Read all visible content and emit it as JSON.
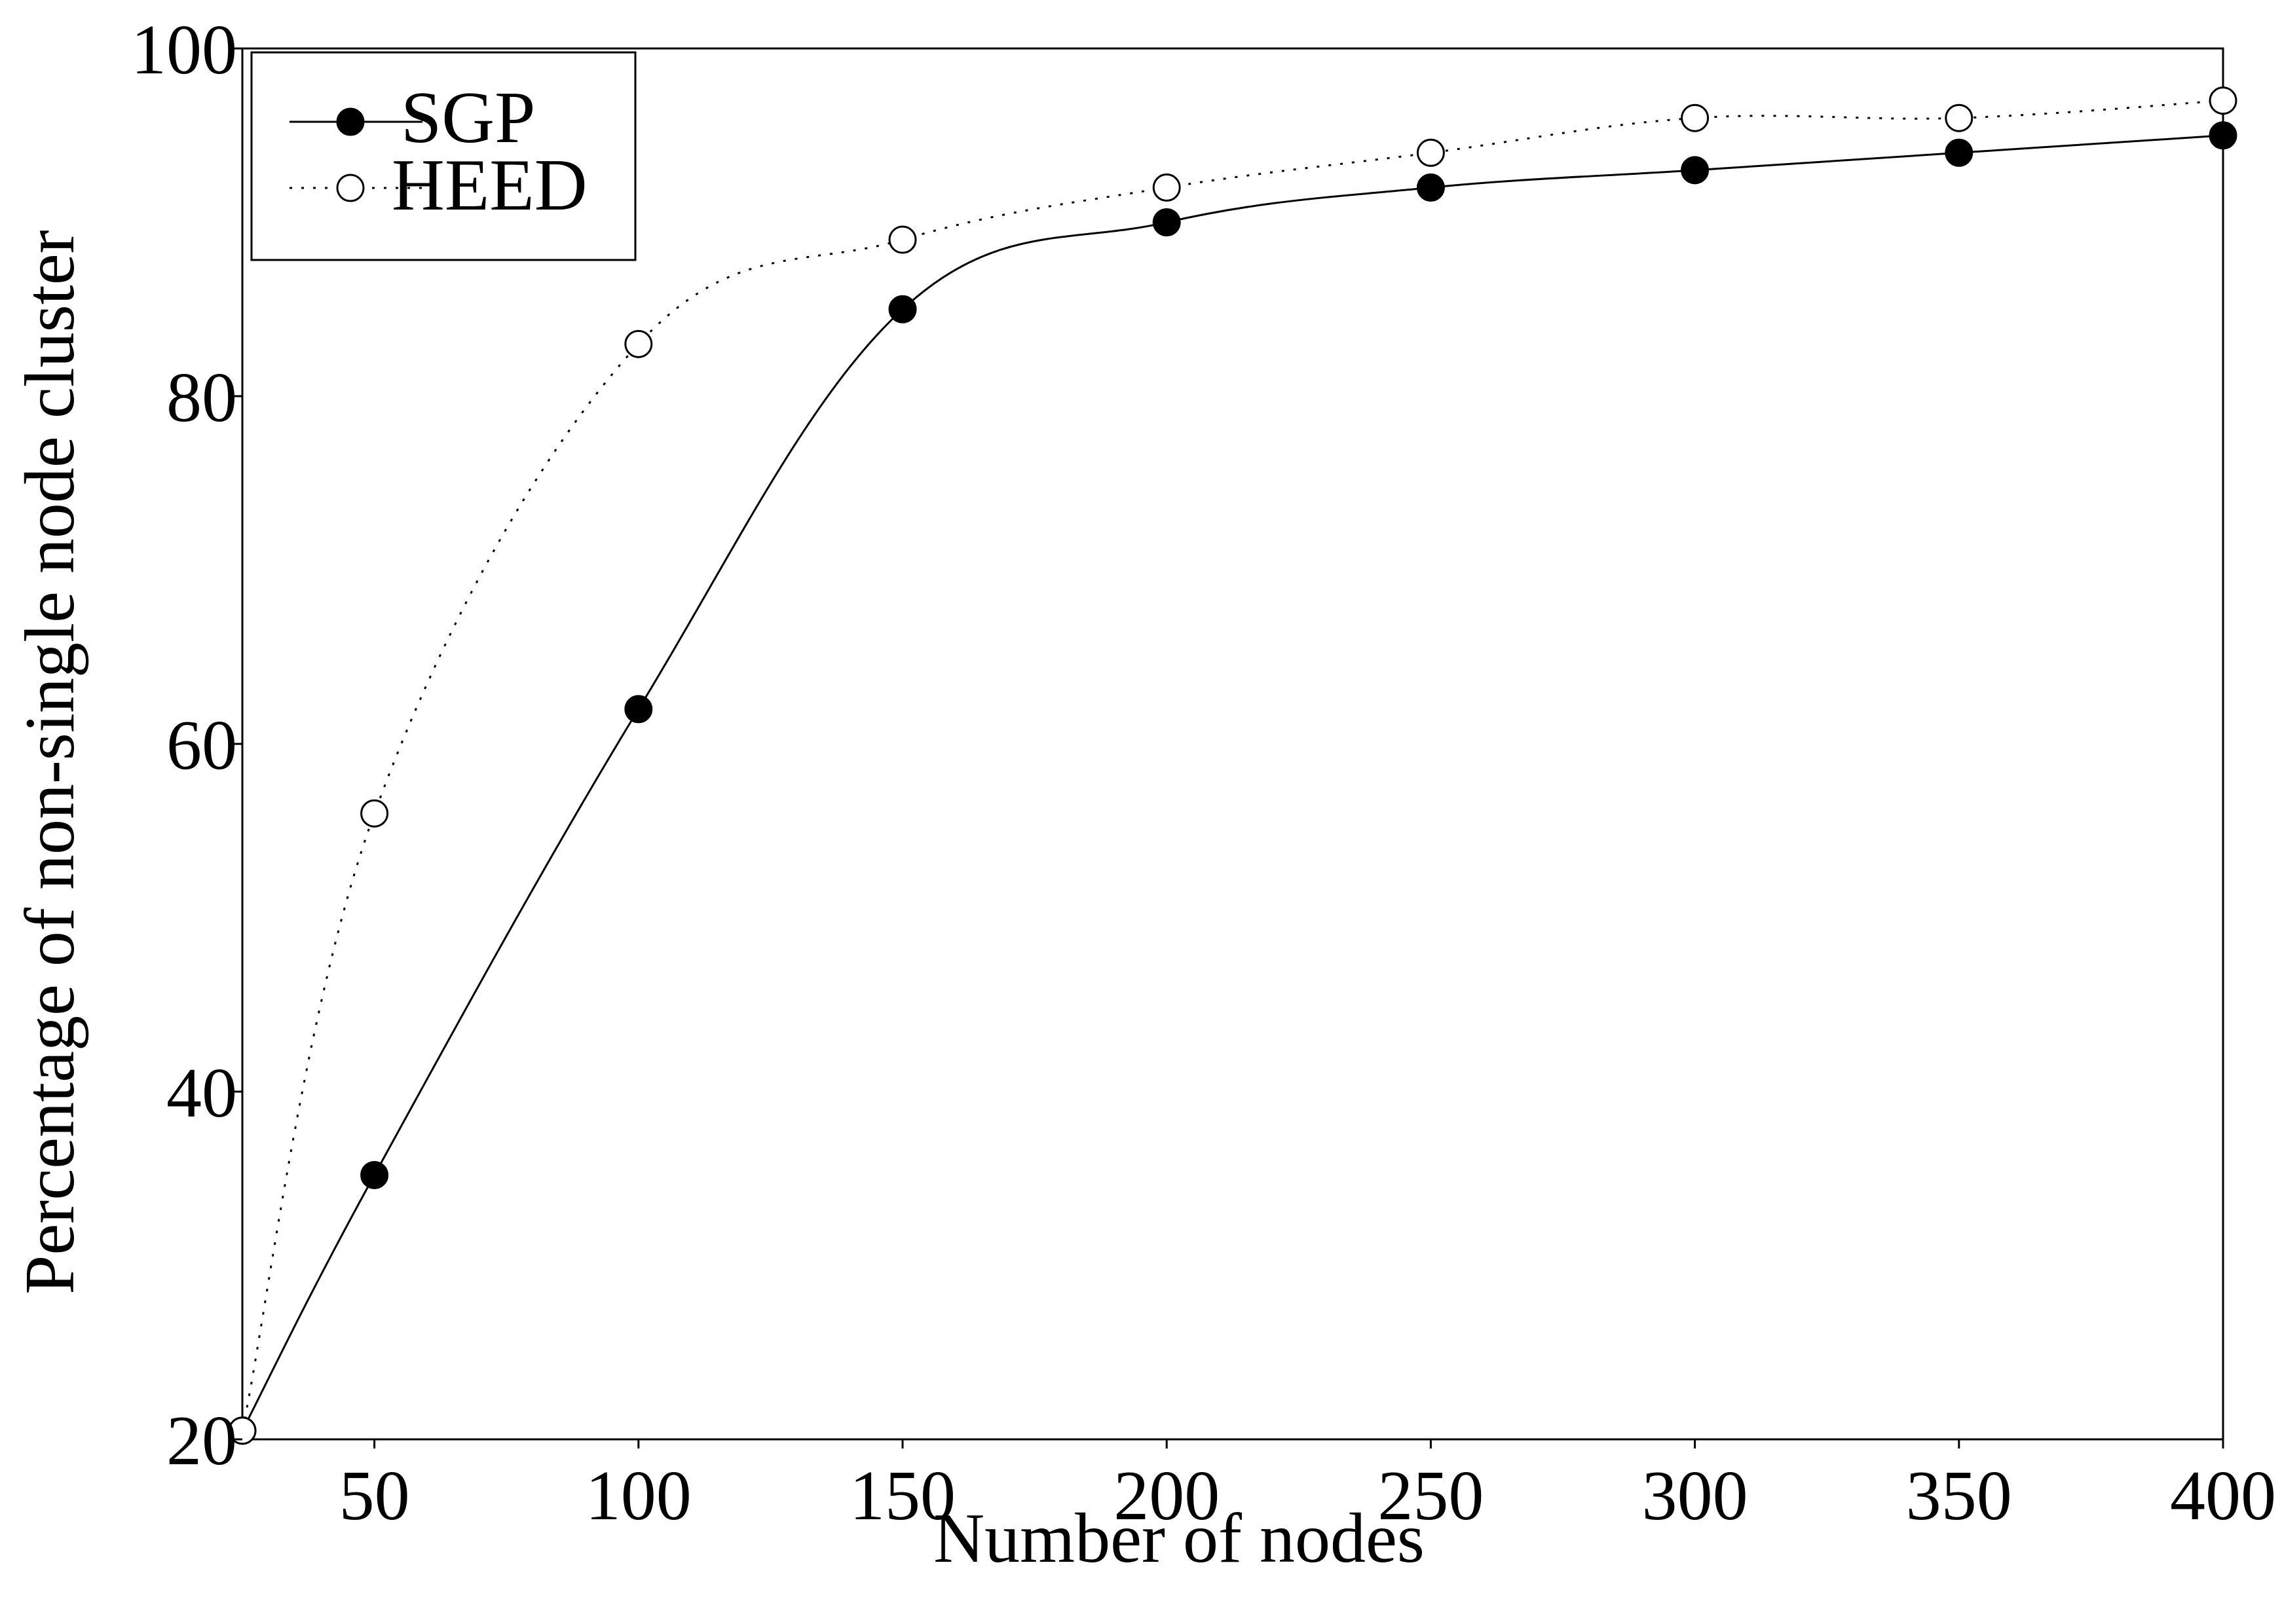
{
  "chart_data": {
    "type": "line",
    "title": "",
    "xlabel": "Number of nodes",
    "ylabel": "Percentage of non-single node cluster",
    "xlim": [
      25,
      400
    ],
    "ylim": [
      20,
      100
    ],
    "xticks": [
      50,
      100,
      150,
      200,
      250,
      300,
      350,
      400
    ],
    "yticks": [
      20,
      40,
      60,
      80,
      100
    ],
    "xtick_labels": [
      "50",
      "100",
      "150",
      "200",
      "250",
      "300",
      "350",
      "400"
    ],
    "ytick_labels": [
      "20",
      "40",
      "60",
      "80",
      "100"
    ],
    "x": [
      25,
      50,
      100,
      150,
      200,
      250,
      300,
      350,
      400
    ],
    "series": [
      {
        "name": "SGP",
        "values": [
          20.5,
          35.2,
          62.0,
          85.0,
          90.0,
          92.0,
          93.0,
          94.0,
          95.0
        ],
        "color": "#000000",
        "marker": "filled-circle",
        "line": "solid"
      },
      {
        "name": "HEED",
        "values": [
          20.5,
          56.0,
          83.0,
          89.0,
          92.0,
          94.0,
          96.0,
          96.0,
          97.0
        ],
        "color": "#000000",
        "marker": "open-circle",
        "line": "dotted"
      }
    ],
    "legend_position": "top-left",
    "grid": false
  }
}
